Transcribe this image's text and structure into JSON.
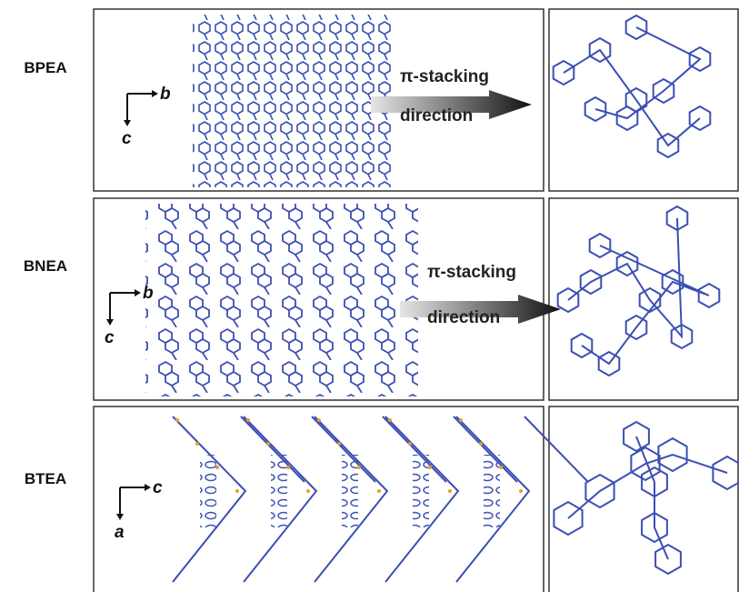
{
  "rows": [
    {
      "label": "BPEA",
      "axes": {
        "horizontal": "b",
        "vertical": "c"
      },
      "arrow": {
        "line1": "π-stacking",
        "line2": "direction"
      }
    },
    {
      "label": "BNEA",
      "axes": {
        "horizontal": "b",
        "vertical": "c"
      },
      "arrow": {
        "line1": "π-stacking",
        "line2": "direction"
      }
    },
    {
      "label": "BTEA",
      "axes": {
        "horizontal": "c",
        "vertical": "a"
      }
    }
  ]
}
